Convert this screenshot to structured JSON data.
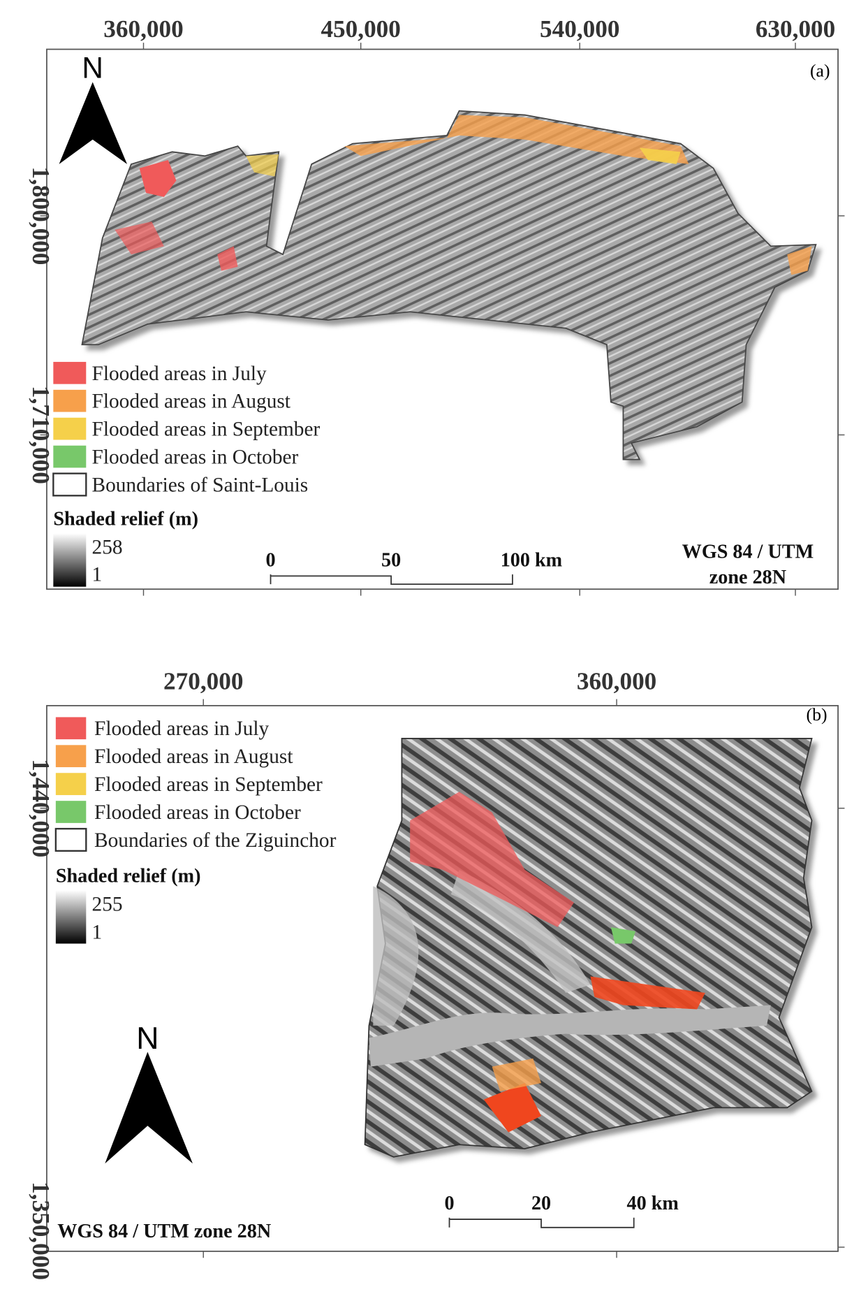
{
  "panels": [
    {
      "label": "(a)",
      "north": "N",
      "x_ticks": [
        "360,000",
        "450,000",
        "540,000",
        "630,000"
      ],
      "y_ticks": [
        "1,800,000",
        "1,710,000"
      ],
      "legend": [
        "Flooded areas in July",
        "Flooded areas in August",
        "Flooded areas in September",
        "Flooded areas in October",
        "Boundaries of Saint-Louis"
      ],
      "relief_title": "Shaded relief  (m)",
      "relief_max": "258",
      "relief_min": "1",
      "scale_bar": [
        "0",
        "50",
        "100 km"
      ],
      "crs": [
        "WGS 84 / UTM",
        "zone 28N"
      ]
    },
    {
      "label": "(b)",
      "north": "N",
      "x_ticks": [
        "270,000",
        "360,000"
      ],
      "y_ticks": [
        "1,440,000",
        "1,350,000"
      ],
      "legend": [
        "Flooded areas in July",
        "Flooded areas in August",
        "Flooded areas in September",
        "Flooded areas in October",
        "Boundaries of the Ziguinchor"
      ],
      "relief_title": "Shaded relief  (m)",
      "relief_max": "255",
      "relief_min": "1",
      "scale_bar": [
        "0",
        "20",
        "40 km"
      ],
      "crs": [
        "WGS 84 / UTM zone 28N"
      ]
    }
  ]
}
